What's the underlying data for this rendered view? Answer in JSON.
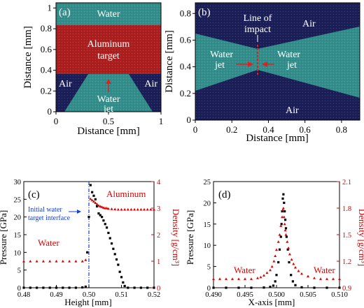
{
  "panels": {
    "a": {
      "label": "(a)",
      "regions": {
        "water": "Water",
        "target_line1": "Aluminum",
        "target_line2": "target",
        "air_left": "Air",
        "air_right": "Air",
        "jet_line1": "Water",
        "jet_line2": "jet"
      },
      "xlabel": "Distance [mm]",
      "ylabel": "Distance [mm]",
      "xticks": [
        "0",
        "0.5",
        "1"
      ],
      "yticks": [
        "0",
        "0.2",
        "0.4",
        "0.6",
        "0.8",
        "1"
      ],
      "colors": {
        "water": "#2f8f8c",
        "target": "#b31c1c",
        "air": "#1a1e5a"
      }
    },
    "b": {
      "label": "(b)",
      "regions": {
        "impact_line1": "Line of",
        "impact_line2": "impact",
        "air_top": "Air",
        "air_bottom": "Air",
        "jet_left_line1": "Water",
        "jet_left_line2": "jet",
        "jet_right_line1": "Water",
        "jet_right_line2": "jet"
      },
      "xlabel": "Distance [mm]",
      "ylabel": "Distance [mm]",
      "xticks": [
        "0",
        "0.2",
        "0.4",
        "0.6",
        "0.8"
      ],
      "yticks": [
        "0",
        "0.2",
        "0.4",
        "0.6",
        "0.8"
      ]
    }
  },
  "chart_data": [
    {
      "type": "scatter",
      "panel": "(c)",
      "xlabel": "Height [mm]",
      "ylabel": "Pressure [GPa]",
      "y2label": "Density [g/cm³]",
      "xlim": [
        0.48,
        0.52
      ],
      "ylim": [
        0,
        30
      ],
      "y2lim": [
        0,
        4
      ],
      "xticks": [
        "0.48",
        "0.49",
        "0.50",
        "0.51",
        "0.52"
      ],
      "yticks": [
        "0",
        "5",
        "10",
        "15",
        "20",
        "25",
        "30"
      ],
      "y2ticks": [
        "0",
        "1",
        "2",
        "3",
        "4"
      ],
      "annotations": {
        "water": "Water",
        "aluminum": "Aluminum",
        "interface_line1": "Initial water",
        "interface_line2": "target interface"
      },
      "interface_x": 0.5,
      "series": [
        {
          "name": "Pressure",
          "axis": "left",
          "color": "#000000",
          "x": [
            0.48,
            0.482,
            0.484,
            0.486,
            0.488,
            0.49,
            0.492,
            0.494,
            0.496,
            0.498,
            0.499,
            0.4995,
            0.5,
            0.5005,
            0.501,
            0.5015,
            0.502,
            0.5025,
            0.503,
            0.5035,
            0.504,
            0.5045,
            0.505,
            0.5055,
            0.506,
            0.5065,
            0.507,
            0.5075,
            0.508,
            0.5085,
            0.509,
            0.5095,
            0.51,
            0.5105,
            0.511,
            0.512,
            0.514,
            0.516,
            0.518,
            0.52
          ],
          "y": [
            0,
            0,
            0,
            0,
            0,
            0,
            0,
            0,
            0,
            0.1,
            0.3,
            10,
            20,
            29,
            27,
            26,
            25,
            23,
            21,
            20.5,
            20,
            19,
            18,
            17,
            15.5,
            14,
            12.5,
            11,
            9.5,
            8,
            6.5,
            4.5,
            3,
            1.5,
            0.5,
            0,
            0,
            0,
            0,
            0
          ]
        },
        {
          "name": "Density",
          "axis": "right",
          "color": "#dd0000",
          "x": [
            0.48,
            0.482,
            0.484,
            0.486,
            0.488,
            0.49,
            0.492,
            0.494,
            0.496,
            0.498,
            0.499,
            0.5005,
            0.501,
            0.5015,
            0.502,
            0.5025,
            0.503,
            0.5035,
            0.504,
            0.5045,
            0.505,
            0.5055,
            0.506,
            0.507,
            0.508,
            0.509,
            0.51,
            0.511,
            0.512,
            0.513,
            0.514,
            0.515,
            0.516,
            0.517,
            0.518,
            0.519,
            0.52
          ],
          "y": [
            1,
            1,
            1,
            1,
            1,
            1,
            1,
            1,
            1,
            1,
            1.05,
            3.35,
            3.3,
            3.25,
            3.2,
            3.15,
            3.1,
            3.07,
            3.05,
            3.02,
            3.0,
            3.0,
            2.98,
            2.97,
            2.96,
            2.95,
            2.95,
            2.95,
            2.95,
            2.95,
            2.95,
            2.95,
            2.95,
            2.95,
            2.95,
            2.95,
            2.95
          ]
        }
      ]
    },
    {
      "type": "scatter",
      "panel": "(d)",
      "xlabel": "X-axis [mm]",
      "ylabel": "Pressure [GPa]",
      "y2label": "Density [g/cm³]",
      "xlim": [
        0.49,
        0.51
      ],
      "ylim": [
        0,
        25
      ],
      "y2lim": [
        0.9,
        2.1
      ],
      "xticks": [
        "0.490",
        "0.495",
        "0.500",
        "0.505",
        "0.510"
      ],
      "yticks": [
        "0",
        "5",
        "10",
        "15",
        "20",
        "25"
      ],
      "y2ticks": [
        "0.9",
        "1.2",
        "1.5",
        "1.8",
        "2.1"
      ],
      "annotations": {
        "water_left": "Water",
        "water_right": "Water"
      },
      "series": [
        {
          "name": "Pressure",
          "axis": "left",
          "color": "#000000",
          "x": [
            0.49,
            0.492,
            0.494,
            0.496,
            0.498,
            0.499,
            0.4995,
            0.4998,
            0.5,
            0.5003,
            0.5005,
            0.5007,
            0.5008,
            0.5009,
            0.501,
            0.5011,
            0.5012,
            0.5013,
            0.5014,
            0.5015,
            0.5016,
            0.5018,
            0.502,
            0.5023,
            0.5026,
            0.503,
            0.504,
            0.506,
            0.508,
            0.51
          ],
          "y": [
            0,
            0,
            0,
            0,
            0.05,
            0.2,
            0.5,
            1.5,
            3,
            6,
            9,
            12,
            15,
            18,
            21,
            22,
            20,
            18,
            16,
            14,
            12,
            9,
            6,
            3,
            1.5,
            0.6,
            0.1,
            0,
            0,
            0
          ]
        },
        {
          "name": "Density",
          "axis": "right",
          "color": "#dd0000",
          "x": [
            0.49,
            0.491,
            0.492,
            0.493,
            0.494,
            0.495,
            0.496,
            0.497,
            0.4975,
            0.498,
            0.4985,
            0.499,
            0.4993,
            0.4996,
            0.4998,
            0.5,
            0.5003,
            0.5005,
            0.5007,
            0.5009,
            0.501,
            0.5011,
            0.5012,
            0.5013,
            0.5014,
            0.5015,
            0.5017,
            0.5019,
            0.5021,
            0.5024,
            0.5027,
            0.503,
            0.5035,
            0.504,
            0.505,
            0.506,
            0.507,
            0.508,
            0.509,
            0.51
          ],
          "y": [
            1.0,
            1.0,
            1.0,
            1.0,
            1.0,
            1.0,
            1.0,
            1.01,
            1.02,
            1.04,
            1.07,
            1.1,
            1.14,
            1.2,
            1.26,
            1.33,
            1.42,
            1.5,
            1.6,
            1.7,
            1.78,
            1.8,
            1.7,
            1.62,
            1.55,
            1.5,
            1.42,
            1.35,
            1.28,
            1.22,
            1.17,
            1.13,
            1.09,
            1.06,
            1.03,
            1.01,
            1.0,
            1.0,
            1.0,
            1.0
          ]
        }
      ]
    }
  ]
}
